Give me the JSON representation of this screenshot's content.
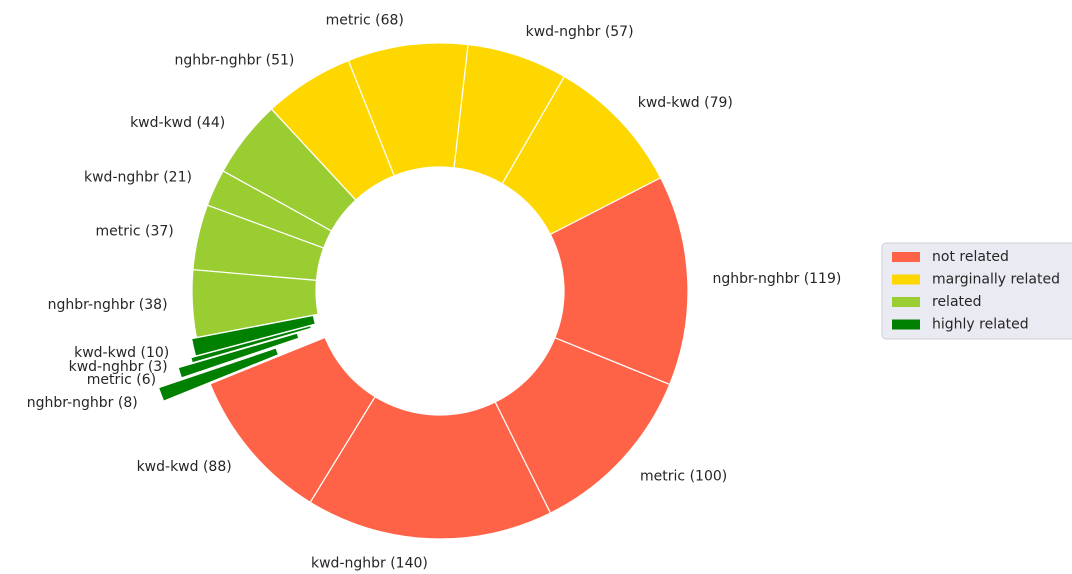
{
  "chart_data": {
    "type": "pie",
    "values": [
      88,
      140,
      100,
      119,
      79,
      57,
      68,
      51,
      44,
      21,
      37,
      38,
      10,
      3,
      6,
      8
    ],
    "value_labels": [
      "kwd-kwd (88)",
      "kwd-nghbr (140)",
      "metric (100)",
      "nghbr-nghbr (119)",
      "kwd-kwd (79)",
      "kwd-nghbr (57)",
      "metric (68)",
      "nghbr-nghbr (51)",
      "kwd-kwd (44)",
      "kwd-nghbr (21)",
      "metric (37)",
      "nghbr-nghbr (38)",
      "kwd-kwd (10)",
      "kwd-nghbr (3)",
      "metric (6)",
      "nghbr-nghbr (8)"
    ],
    "colors": [
      "#ff6347",
      "#ff6347",
      "#ff6347",
      "#ff6347",
      "#ffd700",
      "#ffd700",
      "#ffd700",
      "#ffd700",
      "#9acd32",
      "#9acd32",
      "#9acd32",
      "#9acd32",
      "#008000",
      "#008000",
      "#008000",
      "#008000"
    ],
    "explode": [
      0,
      0,
      0,
      0,
      0,
      0,
      0,
      0,
      0,
      0,
      0,
      0,
      0.02,
      0.04,
      0.1,
      0.2
    ],
    "start_angle": 202,
    "hole": 0.5,
    "legend": {
      "loc": "center right",
      "entries": [
        {
          "name": "not related",
          "color": "#ff6347"
        },
        {
          "name": "marginally related",
          "color": "#ffd700"
        },
        {
          "name": "related",
          "color": "#9acd32"
        },
        {
          "name": "highly related",
          "color": "#008000"
        }
      ]
    }
  }
}
